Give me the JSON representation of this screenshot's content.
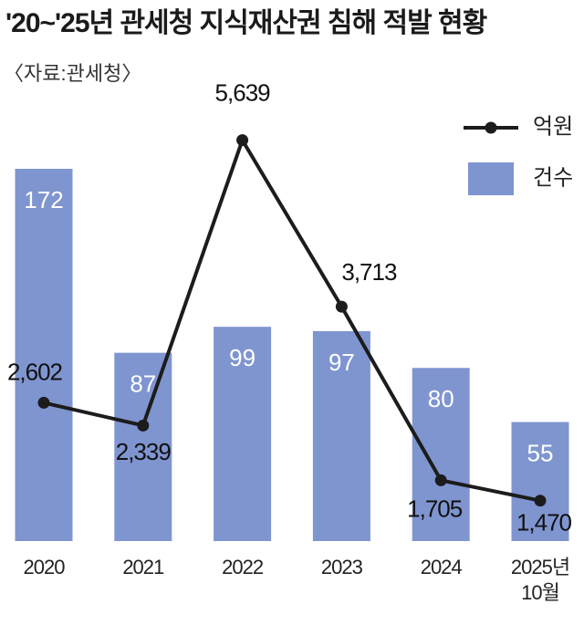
{
  "chart_data": {
    "type": "combo",
    "title": "'20~'25년 관세청 지식재산권 침해 적발 현황",
    "subtitle": "〈자료:관세청〉",
    "categories": [
      "2020",
      "2021",
      "2022",
      "2023",
      "2024",
      "2025년\n10월"
    ],
    "series": [
      {
        "name": "건수",
        "type": "bar",
        "color": "#7f95d0",
        "values": [
          172,
          87,
          99,
          97,
          80,
          55
        ]
      },
      {
        "name": "억원",
        "type": "line",
        "axis": "y2",
        "color": "#1c1c1c",
        "values": [
          2602,
          2339,
          5639,
          3713,
          1705,
          1470
        ],
        "value_labels": [
          "2,602",
          "2,339",
          "5,639",
          "3,713",
          "1,705",
          "1,470"
        ]
      }
    ],
    "ylim": [
      0,
      250
    ],
    "y2lim": [
      0,
      7260
    ],
    "grid": false
  }
}
